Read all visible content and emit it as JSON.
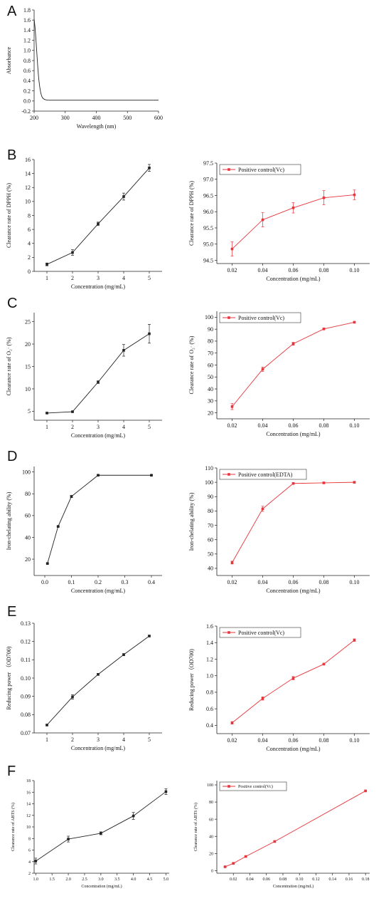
{
  "panel_letters": [
    "A",
    "B",
    "C",
    "D",
    "E",
    "F"
  ],
  "colors": {
    "black": "#222222",
    "red": "#e8343a"
  },
  "chart_data": [
    {
      "id": "A",
      "type": "line",
      "xlabel": "Wavelength (nm)",
      "ylabel": "Absorbance",
      "xlim": [
        200,
        600
      ],
      "ylim": [
        -0.2,
        1.8
      ],
      "xticks": [
        200,
        300,
        400,
        500,
        600
      ],
      "yticks": [
        -0.2,
        0,
        0.2,
        0.4,
        0.6,
        0.8,
        1.0,
        1.2,
        1.4,
        1.6,
        1.8
      ],
      "xtick_labels": [
        "200",
        "300",
        "400",
        "500",
        "600"
      ],
      "ytick_labels": [
        "-0.2",
        "0.0",
        "0.2",
        "0.4",
        "0.6",
        "0.8",
        "1.0",
        "1.2",
        "1.4",
        "1.6",
        "1.8"
      ],
      "color": "black",
      "markers": false,
      "x": [
        200,
        203,
        206,
        209,
        212,
        215,
        218,
        221,
        224,
        227,
        230,
        234,
        238,
        243,
        250,
        260,
        280,
        300,
        350,
        400,
        450,
        500,
        550,
        600
      ],
      "y": [
        1.62,
        1.45,
        1.2,
        0.92,
        0.65,
        0.43,
        0.28,
        0.17,
        0.1,
        0.065,
        0.045,
        0.03,
        0.022,
        0.018,
        0.016,
        0.015,
        0.015,
        0.015,
        0.016,
        0.016,
        0.016,
        0.015,
        0.015,
        0.015
      ]
    },
    {
      "id": "B1",
      "type": "line",
      "xlabel": "Concentration (mg/mL)",
      "ylabel": "Clearance rate of DPPH (%)",
      "xlim": [
        0.5,
        5.5
      ],
      "ylim": [
        0,
        16
      ],
      "xticks": [
        1,
        2,
        3,
        4,
        5
      ],
      "yticks": [
        0,
        2,
        4,
        6,
        8,
        10,
        12,
        14,
        16
      ],
      "xtick_labels": [
        "1",
        "2",
        "3",
        "4",
        "5"
      ],
      "ytick_labels": [
        "0",
        "2",
        "4",
        "6",
        "8",
        "10",
        "12",
        "14",
        "16"
      ],
      "color": "black",
      "markers": true,
      "x": [
        1,
        2,
        3,
        4,
        5
      ],
      "y": [
        1.0,
        2.7,
        6.8,
        10.7,
        14.8
      ],
      "err": [
        0.2,
        0.4,
        0.25,
        0.5,
        0.5
      ]
    },
    {
      "id": "B2",
      "type": "line",
      "xlabel": "Concentration (mg/mL)",
      "ylabel": "Clearance rate of DPPH (%)",
      "xlim": [
        0.01,
        0.11
      ],
      "ylim": [
        94.4,
        97.5
      ],
      "xticks": [
        0.02,
        0.04,
        0.06,
        0.08,
        0.1
      ],
      "yticks": [
        94.5,
        95.0,
        95.5,
        96.0,
        96.5,
        97.0,
        97.5
      ],
      "xtick_labels": [
        "0.02",
        "0.04",
        "0.06",
        "0.08",
        "0.10"
      ],
      "ytick_labels": [
        "94.5",
        "95.0",
        "95.5",
        "96.0",
        "96.5",
        "97.0",
        "97.5"
      ],
      "color": "red",
      "markers": true,
      "legend": "Positive control(Vc)",
      "legend_position": "top-left",
      "x": [
        0.02,
        0.04,
        0.06,
        0.08,
        0.1
      ],
      "y": [
        94.85,
        95.75,
        96.12,
        96.43,
        96.52
      ],
      "err": [
        0.22,
        0.22,
        0.16,
        0.22,
        0.15
      ]
    },
    {
      "id": "C1",
      "type": "line",
      "xlabel": "Concentration (mg/mL)",
      "ylabel": "Clearance rate of  O₂· (%)",
      "xlim": [
        0.5,
        5.5
      ],
      "ylim": [
        3,
        27
      ],
      "xticks": [
        1,
        2,
        3,
        4,
        5
      ],
      "yticks": [
        5,
        10,
        15,
        20,
        25
      ],
      "xtick_labels": [
        "1",
        "2",
        "3",
        "4",
        "5"
      ],
      "ytick_labels": [
        "5",
        "10",
        "15",
        "20",
        "25"
      ],
      "color": "black",
      "markers": true,
      "x": [
        1,
        2,
        3,
        4,
        5
      ],
      "y": [
        4.6,
        4.9,
        11.5,
        18.6,
        22.3
      ],
      "err": [
        0.15,
        0.15,
        0.3,
        1.3,
        2.1
      ]
    },
    {
      "id": "C2",
      "type": "line",
      "xlabel": "Concentration (mg/mL)",
      "ylabel": "Clearance rate of  O₂· (%)",
      "xlim": [
        0.01,
        0.11
      ],
      "ylim": [
        15,
        105
      ],
      "xticks": [
        0.02,
        0.04,
        0.06,
        0.08,
        0.1
      ],
      "yticks": [
        20,
        30,
        40,
        50,
        60,
        70,
        80,
        90,
        100
      ],
      "xtick_labels": [
        "0.02",
        "0.04",
        "0.06",
        "0.08",
        "0.10"
      ],
      "ytick_labels": [
        "20",
        "30",
        "40",
        "50",
        "60",
        "70",
        "80",
        "90",
        "100"
      ],
      "color": "red",
      "markers": true,
      "legend": "Positive control(Vc)",
      "legend_position": "top-left",
      "x": [
        0.02,
        0.04,
        0.06,
        0.08,
        0.1
      ],
      "y": [
        25.2,
        56.5,
        77.8,
        90.2,
        95.8
      ],
      "err": [
        2.5,
        1.8,
        1.2,
        0.5,
        0.5
      ]
    },
    {
      "id": "D1",
      "type": "line",
      "xlabel": "Concentration (mg/mL)",
      "ylabel": "Iron-chelating ability (%)",
      "xlim": [
        -0.04,
        0.44
      ],
      "ylim": [
        5,
        105
      ],
      "xticks": [
        0.0,
        0.1,
        0.2,
        0.3,
        0.4
      ],
      "yticks": [
        20,
        40,
        60,
        80,
        100
      ],
      "xtick_labels": [
        "0.0",
        "0.1",
        "0.2",
        "0.3",
        "0.4"
      ],
      "ytick_labels": [
        "20",
        "40",
        "60",
        "80",
        "100"
      ],
      "color": "black",
      "markers": true,
      "x": [
        0.01,
        0.05,
        0.1,
        0.2,
        0.4
      ],
      "y": [
        16,
        50,
        77.5,
        97,
        97
      ],
      "err": [
        0.5,
        0.5,
        1.0,
        0.5,
        0.5
      ]
    },
    {
      "id": "D2",
      "type": "line",
      "xlabel": "Concentration (mg/mL)",
      "ylabel": "Iron-chelating ability (%)",
      "xlim": [
        0.01,
        0.11
      ],
      "ylim": [
        35,
        110
      ],
      "xticks": [
        0.02,
        0.04,
        0.06,
        0.08,
        0.1
      ],
      "yticks": [
        40,
        50,
        60,
        70,
        80,
        90,
        100,
        110
      ],
      "xtick_labels": [
        "0.02",
        "0.04",
        "0.06",
        "0.08",
        "0.10"
      ],
      "ytick_labels": [
        "40",
        "50",
        "60",
        "70",
        "80",
        "90",
        "100",
        "110"
      ],
      "color": "red",
      "markers": true,
      "legend": "Positive control(EDTA)",
      "legend_position": "top-left",
      "x": [
        0.02,
        0.04,
        0.06,
        0.08,
        0.1
      ],
      "y": [
        44.0,
        81.5,
        99.2,
        99.6,
        100.0
      ],
      "err": [
        1.0,
        1.8,
        0.5,
        0.5,
        0.5
      ]
    },
    {
      "id": "E1",
      "type": "line",
      "xlabel": "Concentration (mg/mL)",
      "ylabel": "Reducing power （OD700)",
      "xlim": [
        0.5,
        5.5
      ],
      "ylim": [
        0.07,
        0.13
      ],
      "xticks": [
        1,
        2,
        3,
        4,
        5
      ],
      "yticks": [
        0.07,
        0.08,
        0.09,
        0.1,
        0.11,
        0.12,
        0.13
      ],
      "xtick_labels": [
        "1",
        "2",
        "3",
        "4",
        "5"
      ],
      "ytick_labels": [
        "0.07",
        "0.08",
        "0.09",
        "0.10",
        "0.11",
        "0.12",
        "0.13"
      ],
      "color": "black",
      "markers": true,
      "x": [
        1,
        2,
        3,
        4,
        5
      ],
      "y": [
        0.0743,
        0.0897,
        0.102,
        0.1128,
        0.123
      ],
      "err": [
        0.0004,
        0.0012,
        0.0005,
        0.0006,
        0.0004
      ]
    },
    {
      "id": "E2",
      "type": "line",
      "xlabel": "Concentration (mg/mL)",
      "ylabel": "Reducing power（OD700)",
      "xlim": [
        0.01,
        0.11
      ],
      "ylim": [
        0.3,
        1.6
      ],
      "xticks": [
        0.02,
        0.04,
        0.06,
        0.08,
        0.1
      ],
      "yticks": [
        0.4,
        0.6,
        0.8,
        1.0,
        1.2,
        1.4,
        1.6
      ],
      "xtick_labels": [
        "0.02",
        "0.04",
        "0.06",
        "0.08",
        "0.10"
      ],
      "ytick_labels": [
        "0.4",
        "0.6",
        "0.8",
        "1.0",
        "1.2",
        "1.4",
        "1.6"
      ],
      "color": "red",
      "markers": true,
      "legend": "Positive control(Vc)",
      "legend_position": "top-left",
      "x": [
        0.02,
        0.04,
        0.06,
        0.08,
        0.1
      ],
      "y": [
        0.43,
        0.725,
        0.97,
        1.14,
        1.43
      ],
      "err": [
        0.015,
        0.02,
        0.02,
        0.01,
        0.015
      ]
    },
    {
      "id": "F1",
      "type": "line",
      "xlabel": "Concentration (mg/mL)",
      "ylabel": "Clearance rate of ABTS (%)",
      "xlim": [
        0.95,
        5.1
      ],
      "ylim": [
        2,
        18
      ],
      "xticks": [
        1.0,
        1.5,
        2.0,
        2.5,
        3.0,
        3.5,
        4.0,
        4.5,
        5.0
      ],
      "yticks": [
        2,
        4,
        6,
        8,
        10,
        12,
        14,
        16,
        18
      ],
      "xtick_labels": [
        "1.0",
        "1.5",
        "2.0",
        "2.5",
        "3.0",
        "3.5",
        "4.0",
        "4.5",
        "5.0"
      ],
      "ytick_labels": [
        "2",
        "4",
        "6",
        "8",
        "10",
        "12",
        "14",
        "16",
        "18"
      ],
      "color": "black",
      "markers": true,
      "x": [
        1,
        2,
        3,
        4,
        5
      ],
      "y": [
        4.1,
        7.9,
        8.9,
        11.9,
        16.1
      ],
      "err": [
        0.5,
        0.5,
        0.25,
        0.6,
        0.5
      ]
    },
    {
      "id": "F2",
      "type": "line",
      "xlabel": "Concentration (mg/mL)",
      "ylabel": "Clearance rate of ABTS (%)",
      "xlim": [
        0.0,
        0.185
      ],
      "ylim": [
        -3,
        105
      ],
      "xticks": [
        0.02,
        0.04,
        0.06,
        0.08,
        0.1,
        0.12,
        0.14,
        0.16,
        0.18
      ],
      "yticks": [
        0,
        20,
        40,
        60,
        80,
        100
      ],
      "xtick_labels": [
        "0.02",
        "0.04",
        "0.06",
        "0.08",
        "0.10",
        "0.12",
        "0.14",
        "0.16",
        "0.18"
      ],
      "ytick_labels": [
        "0",
        "20",
        "40",
        "60",
        "80",
        "100"
      ],
      "color": "red",
      "markers": true,
      "legend": "Positive control(Vc)",
      "legend_position": "top-left",
      "x": [
        0.01,
        0.02,
        0.035,
        0.07,
        0.18
      ],
      "y": [
        4.5,
        8.5,
        16.5,
        34.0,
        93.0
      ],
      "err": [
        0.5,
        0.5,
        0.5,
        1.0,
        1.0
      ]
    }
  ]
}
